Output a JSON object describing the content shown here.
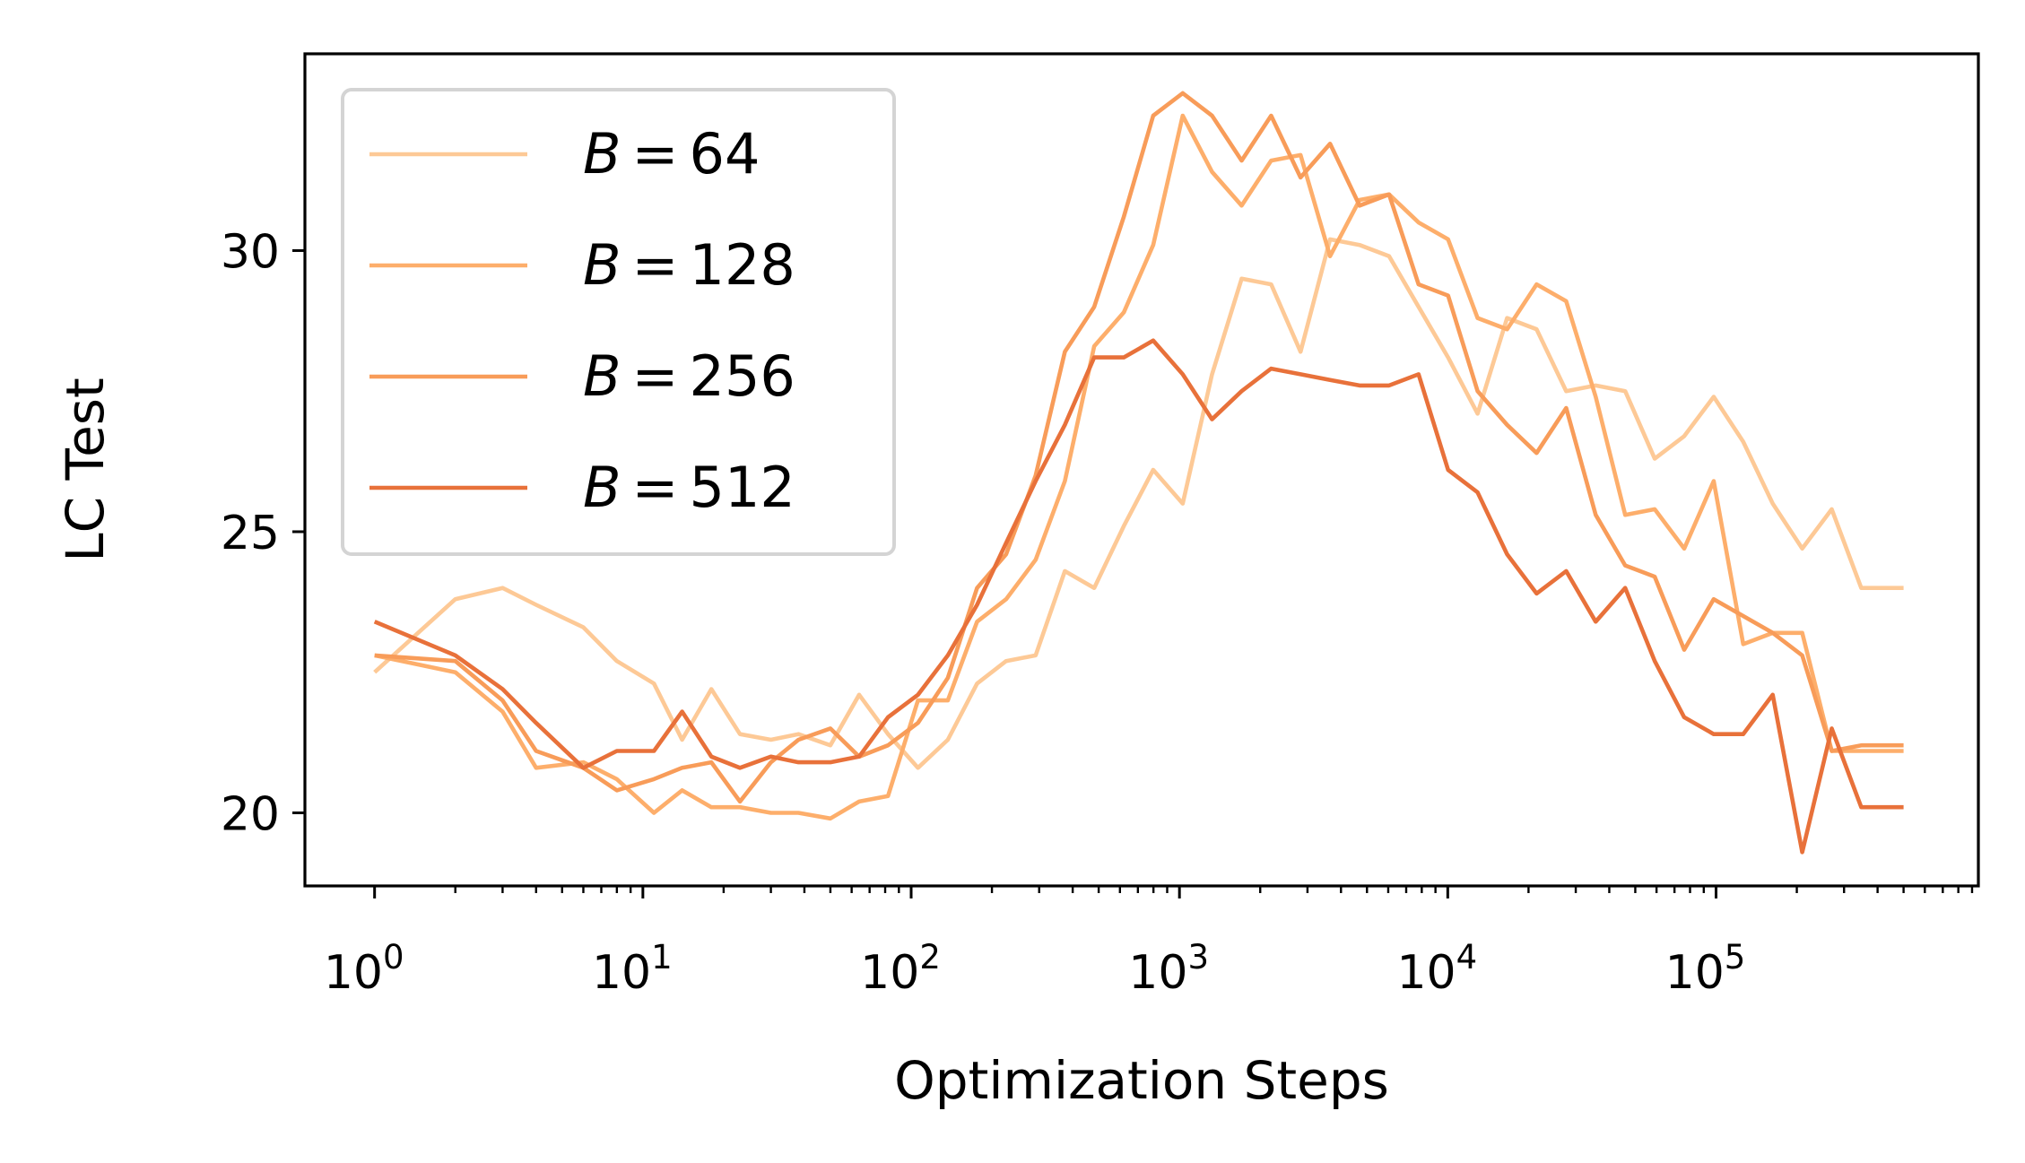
{
  "chart_data": {
    "type": "line",
    "xlabel": "Optimization Steps",
    "ylabel": "LC Test",
    "xscale": "log",
    "xlim": [
      0.55,
      950000
    ],
    "ylim": [
      18.7,
      33.5
    ],
    "x_ticks": [
      {
        "value": 1,
        "base": "10",
        "exp": "0"
      },
      {
        "value": 10,
        "base": "10",
        "exp": "1"
      },
      {
        "value": 100,
        "base": "10",
        "exp": "2"
      },
      {
        "value": 1000,
        "base": "10",
        "exp": "3"
      },
      {
        "value": 10000,
        "base": "10",
        "exp": "4"
      },
      {
        "value": 100000,
        "base": "10",
        "exp": "5"
      }
    ],
    "y_ticks": [
      {
        "value": 20,
        "label": "20"
      },
      {
        "value": 25,
        "label": "25"
      },
      {
        "value": 30,
        "label": "30"
      }
    ],
    "grid": false,
    "legend_position": "top-left",
    "x": [
      1,
      2,
      3,
      4,
      6,
      8,
      11,
      14,
      18,
      23,
      30,
      38,
      50,
      64,
      82,
      106,
      137,
      176,
      226,
      291,
      374,
      481,
      620,
      798,
      1028,
      1323,
      1705,
      2196,
      2828,
      3643,
      4693,
      6045,
      7787,
      10031,
      12921,
      16646,
      21444,
      27625,
      35585,
      45843,
      59057,
      76079,
      98007,
      126254,
      162643,
      209522,
      269909,
      347703,
      447928,
      500000
    ],
    "series": [
      {
        "name": "B = 64",
        "legend_var": "B",
        "legend_eq": "=",
        "legend_num": "64",
        "color": "#fdc996",
        "values": [
          22.5,
          23.8,
          24.0,
          23.7,
          23.3,
          22.7,
          22.3,
          21.3,
          22.2,
          21.4,
          21.3,
          21.4,
          21.2,
          22.1,
          21.4,
          20.8,
          21.3,
          22.3,
          22.7,
          22.8,
          24.3,
          24.0,
          25.1,
          26.1,
          25.5,
          27.8,
          29.5,
          29.4,
          28.2,
          30.2,
          30.1,
          29.9,
          29.0,
          28.1,
          27.1,
          28.8,
          28.6,
          27.5,
          27.6,
          27.5,
          26.3,
          26.7,
          27.4,
          26.6,
          25.5,
          24.7,
          25.4,
          24.0,
          24.0,
          24.0
        ]
      },
      {
        "name": "B = 128",
        "legend_var": "B",
        "legend_eq": "=",
        "legend_num": "128",
        "color": "#fdae6b",
        "values": [
          22.8,
          22.5,
          21.8,
          20.8,
          20.9,
          20.6,
          20.0,
          20.4,
          20.1,
          20.1,
          20.0,
          20.0,
          19.9,
          20.2,
          20.3,
          22.0,
          22.0,
          23.4,
          23.8,
          24.5,
          25.9,
          28.3,
          28.9,
          30.1,
          32.4,
          31.4,
          30.8,
          31.6,
          31.7,
          29.9,
          30.9,
          31.0,
          30.5,
          30.2,
          28.8,
          28.6,
          29.4,
          29.1,
          27.4,
          25.3,
          25.4,
          24.7,
          25.9,
          23.0,
          23.2,
          23.2,
          21.1,
          21.1,
          21.1,
          21.1
        ]
      },
      {
        "name": "B = 256",
        "legend_var": "B",
        "legend_eq": "=",
        "legend_num": "256",
        "color": "#f89c59",
        "values": [
          22.8,
          22.7,
          22.0,
          21.1,
          20.8,
          20.4,
          20.6,
          20.8,
          20.9,
          20.2,
          20.9,
          21.3,
          21.5,
          21.0,
          21.2,
          21.6,
          22.4,
          24.0,
          24.6,
          26.0,
          28.2,
          29.0,
          30.6,
          32.4,
          32.8,
          32.4,
          31.6,
          32.4,
          31.3,
          31.9,
          30.8,
          31.0,
          29.4,
          29.2,
          27.5,
          26.9,
          26.4,
          27.2,
          25.3,
          24.4,
          24.2,
          22.9,
          23.8,
          23.5,
          23.2,
          22.8,
          21.1,
          21.2,
          21.2,
          21.2
        ]
      },
      {
        "name": "B = 512",
        "legend_var": "B",
        "legend_eq": "=",
        "legend_num": "512",
        "color": "#e8713a",
        "values": [
          23.4,
          22.8,
          22.2,
          21.6,
          20.8,
          21.1,
          21.1,
          21.8,
          21.0,
          20.8,
          21.0,
          20.9,
          20.9,
          21.0,
          21.7,
          22.1,
          22.8,
          23.7,
          24.8,
          25.9,
          26.9,
          28.1,
          28.1,
          28.4,
          27.8,
          27.0,
          27.5,
          27.9,
          27.8,
          27.7,
          27.6,
          27.6,
          27.8,
          26.1,
          25.7,
          24.6,
          23.9,
          24.3,
          23.4,
          24.0,
          22.7,
          21.7,
          21.4,
          21.4,
          22.1,
          19.3,
          21.5,
          20.1,
          20.1,
          20.1
        ]
      }
    ]
  }
}
